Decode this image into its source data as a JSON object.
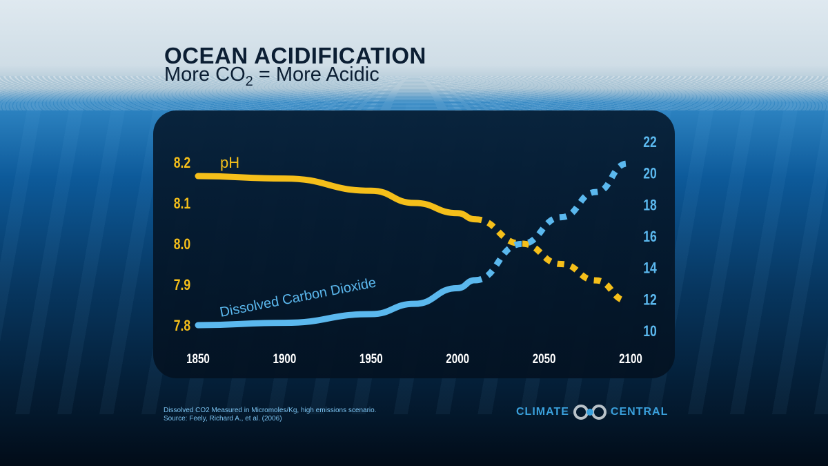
{
  "title": "OCEAN ACIDIFICATION",
  "subtitle": {
    "pre": "More CO",
    "sub": "2",
    "post": " = More Acidic"
  },
  "footnote": [
    "Dissolved CO2 Measured in Micromoles/Kg, high emissions scenario.",
    "Source: Feely, Richard A., et al. (2006)"
  ],
  "logo": {
    "left": "CLIMATE",
    "right": "CENTRAL"
  },
  "colors": {
    "ph": "#f5bf1a",
    "co2": "#5bb8ee",
    "background": "#0a3f6e"
  },
  "chart_data": {
    "type": "line",
    "title": "",
    "x_ticks": [
      "1850",
      "1900",
      "1950",
      "2000",
      "2050",
      "2100"
    ],
    "xlim": [
      1850,
      2100
    ],
    "y_left": {
      "ticks": [
        "8.2",
        "8.1",
        "8.0",
        "7.9",
        "7.8"
      ],
      "ylim": [
        7.8,
        8.2
      ]
    },
    "y_right": {
      "ticks": [
        "22",
        "20",
        "18",
        "16",
        "14",
        "12",
        "10"
      ],
      "ylim": [
        10,
        22
      ]
    },
    "grid": false,
    "projection_start": 2010,
    "series": [
      {
        "name": "pH",
        "axis": "left",
        "x": [
          1850,
          1900,
          1950,
          1975,
          2000,
          2010,
          2037,
          2060,
          2080,
          2098
        ],
        "y": [
          8.166,
          8.16,
          8.13,
          8.1,
          8.075,
          8.06,
          8.0,
          7.95,
          7.91,
          7.86
        ]
      },
      {
        "name": "Dissolved Carbon Dioxide",
        "axis": "right",
        "x": [
          1850,
          1900,
          1950,
          1975,
          2000,
          2010,
          2037,
          2060,
          2080,
          2098
        ],
        "y": [
          10.35,
          10.5,
          11.05,
          11.7,
          12.7,
          13.2,
          15.5,
          17.2,
          18.8,
          20.6
        ]
      }
    ]
  }
}
